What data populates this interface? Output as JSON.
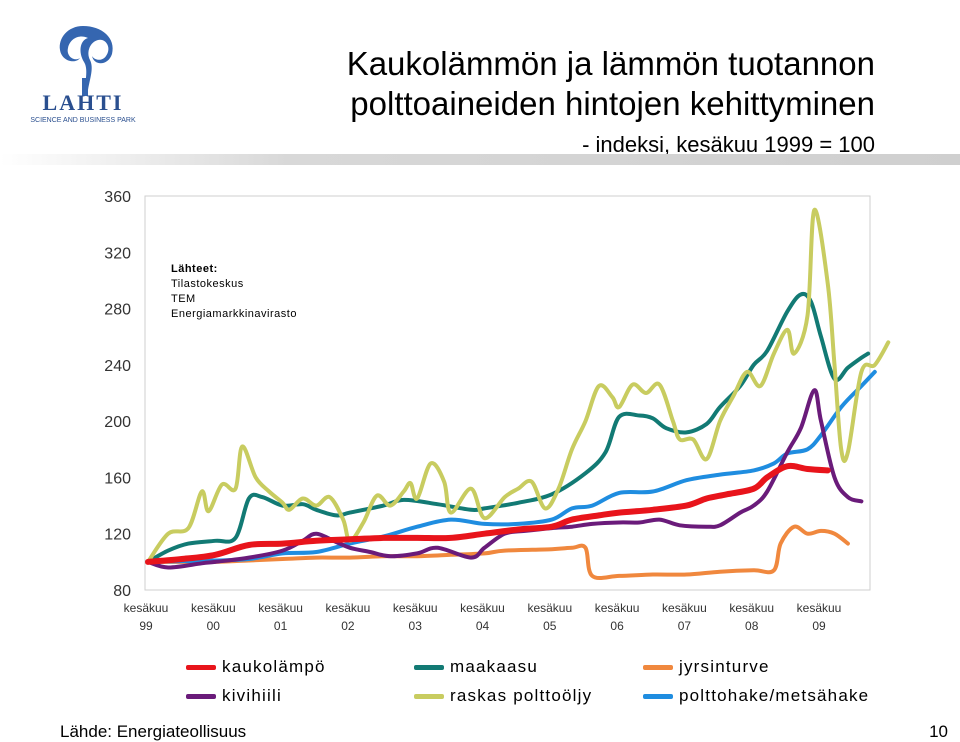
{
  "header": {
    "logo_text": "LAHTI",
    "logo_subtext": "SCIENCE AND BUSINESS PARK",
    "title_line1": "Kaukolämmön ja lämmön tuotannon",
    "title_line2": "polttoaineiden hintojen kehittyminen",
    "subtitle": "- indeksi, kesäkuu 1999 = 100"
  },
  "sources": {
    "heading": "Lähteet:",
    "line1": "Tilastokeskus",
    "line2": "TEM",
    "line3": "Energiamarkkinavirasto"
  },
  "footer": {
    "source": "Lähde: Energiateollisuus",
    "page_number": "10"
  },
  "chart_data": {
    "type": "line",
    "ylim": [
      80,
      360
    ],
    "yticks": [
      80,
      120,
      160,
      200,
      240,
      280,
      320,
      360
    ],
    "xlim": [
      1999.45,
      2009.45
    ],
    "xtick_labels": [
      [
        "kesäkuu",
        "99"
      ],
      [
        "kesäkuu",
        "00"
      ],
      [
        "kesäkuu",
        "01"
      ],
      [
        "kesäkuu",
        "02"
      ],
      [
        "kesäkuu",
        "03"
      ],
      [
        "kesäkuu",
        "04"
      ],
      [
        "kesäkuu",
        "05"
      ],
      [
        "kesäkuu",
        "06"
      ],
      [
        "kesäkuu",
        "07"
      ],
      [
        "kesäkuu",
        "08"
      ],
      [
        "kesäkuu",
        "09"
      ]
    ],
    "grid": false,
    "legend_position": "bottom",
    "series": [
      {
        "name": "kaukolämpö",
        "color": "#e8141b",
        "width": 6,
        "points": [
          [
            0,
            100
          ],
          [
            0.5,
            102
          ],
          [
            1.0,
            105
          ],
          [
            1.5,
            112
          ],
          [
            2.0,
            113
          ],
          [
            2.5,
            115
          ],
          [
            3.0,
            116
          ],
          [
            3.5,
            117
          ],
          [
            4.0,
            117
          ],
          [
            4.5,
            117
          ],
          [
            5.0,
            120
          ],
          [
            5.5,
            123
          ],
          [
            6.0,
            125
          ],
          [
            6.3,
            130
          ],
          [
            6.7,
            133
          ],
          [
            7.0,
            135
          ],
          [
            7.5,
            137
          ],
          [
            8.0,
            140
          ],
          [
            8.3,
            145
          ],
          [
            8.6,
            148
          ],
          [
            9.0,
            152
          ],
          [
            9.2,
            160
          ],
          [
            9.5,
            168
          ],
          [
            9.8,
            166
          ],
          [
            10.1,
            165
          ]
        ]
      },
      {
        "name": "maakaasu",
        "color": "#127a74",
        "width": 4,
        "points": [
          [
            0,
            100
          ],
          [
            0.3,
            108
          ],
          [
            0.6,
            113
          ],
          [
            1.0,
            115
          ],
          [
            1.3,
            117
          ],
          [
            1.5,
            145
          ],
          [
            1.7,
            146
          ],
          [
            2.0,
            140
          ],
          [
            2.3,
            141
          ],
          [
            2.5,
            137
          ],
          [
            2.8,
            133
          ],
          [
            3.0,
            135
          ],
          [
            3.5,
            140
          ],
          [
            3.8,
            144
          ],
          [
            4.3,
            141
          ],
          [
            4.8,
            137
          ],
          [
            5.0,
            138
          ],
          [
            5.5,
            142
          ],
          [
            6.0,
            148
          ],
          [
            6.5,
            163
          ],
          [
            6.8,
            178
          ],
          [
            7.0,
            203
          ],
          [
            7.3,
            204
          ],
          [
            7.5,
            202
          ],
          [
            7.7,
            195
          ],
          [
            8.0,
            192
          ],
          [
            8.3,
            198
          ],
          [
            8.5,
            210
          ],
          [
            8.8,
            225
          ],
          [
            9.0,
            240
          ],
          [
            9.2,
            250
          ],
          [
            9.5,
            278
          ],
          [
            9.7,
            290
          ],
          [
            9.85,
            285
          ],
          [
            10.0,
            260
          ],
          [
            10.2,
            230
          ],
          [
            10.4,
            238
          ],
          [
            10.6,
            245
          ],
          [
            10.7,
            248
          ]
        ]
      },
      {
        "name": "jyrsinturve",
        "color": "#f0883e",
        "width": 4,
        "points": [
          [
            0,
            100
          ],
          [
            0.5,
            100
          ],
          [
            1.0,
            100
          ],
          [
            1.5,
            101
          ],
          [
            2.0,
            102
          ],
          [
            2.5,
            103
          ],
          [
            3.0,
            103
          ],
          [
            3.5,
            104
          ],
          [
            4.0,
            104
          ],
          [
            4.5,
            105
          ],
          [
            5.0,
            106
          ],
          [
            5.3,
            108
          ],
          [
            6.0,
            109
          ],
          [
            6.3,
            110
          ],
          [
            6.5,
            110
          ],
          [
            6.6,
            90
          ],
          [
            7.0,
            90
          ],
          [
            7.5,
            91
          ],
          [
            8.0,
            91
          ],
          [
            8.5,
            93
          ],
          [
            9.0,
            94
          ],
          [
            9.3,
            94
          ],
          [
            9.4,
            113
          ],
          [
            9.6,
            125
          ],
          [
            9.8,
            120
          ],
          [
            10.0,
            122
          ],
          [
            10.2,
            120
          ],
          [
            10.4,
            113
          ]
        ]
      },
      {
        "name": "kivihiili",
        "color": "#6a1b7a",
        "width": 4,
        "points": [
          [
            0,
            100
          ],
          [
            0.3,
            96
          ],
          [
            0.8,
            99
          ],
          [
            1.0,
            100
          ],
          [
            1.5,
            103
          ],
          [
            2.0,
            108
          ],
          [
            2.3,
            115
          ],
          [
            2.5,
            120
          ],
          [
            2.8,
            114
          ],
          [
            3.0,
            110
          ],
          [
            3.3,
            107
          ],
          [
            3.6,
            104
          ],
          [
            4.0,
            106
          ],
          [
            4.3,
            110
          ],
          [
            4.8,
            103
          ],
          [
            5.0,
            110
          ],
          [
            5.3,
            120
          ],
          [
            5.6,
            122
          ],
          [
            6.0,
            124
          ],
          [
            6.3,
            125
          ],
          [
            6.6,
            127
          ],
          [
            7.0,
            128
          ],
          [
            7.3,
            128
          ],
          [
            7.6,
            130
          ],
          [
            7.9,
            126
          ],
          [
            8.3,
            125
          ],
          [
            8.5,
            126
          ],
          [
            8.8,
            135
          ],
          [
            9.0,
            140
          ],
          [
            9.2,
            150
          ],
          [
            9.5,
            178
          ],
          [
            9.7,
            195
          ],
          [
            9.9,
            222
          ],
          [
            10.0,
            200
          ],
          [
            10.2,
            160
          ],
          [
            10.4,
            146
          ],
          [
            10.6,
            143
          ]
        ]
      },
      {
        "name": "raskas polttoöljy",
        "color": "#c8cc60",
        "width": 4,
        "points": [
          [
            0,
            100
          ],
          [
            0.3,
            120
          ],
          [
            0.6,
            124
          ],
          [
            0.8,
            150
          ],
          [
            0.9,
            136
          ],
          [
            1.1,
            155
          ],
          [
            1.3,
            152
          ],
          [
            1.4,
            182
          ],
          [
            1.6,
            160
          ],
          [
            1.8,
            150
          ],
          [
            2.0,
            142
          ],
          [
            2.1,
            137
          ],
          [
            2.3,
            145
          ],
          [
            2.5,
            140
          ],
          [
            2.7,
            146
          ],
          [
            2.9,
            130
          ],
          [
            3.0,
            115
          ],
          [
            3.2,
            128
          ],
          [
            3.4,
            147
          ],
          [
            3.6,
            140
          ],
          [
            3.8,
            150
          ],
          [
            3.9,
            156
          ],
          [
            4.0,
            145
          ],
          [
            4.2,
            170
          ],
          [
            4.4,
            157
          ],
          [
            4.5,
            135
          ],
          [
            4.8,
            152
          ],
          [
            5.0,
            131
          ],
          [
            5.3,
            146
          ],
          [
            5.5,
            152
          ],
          [
            5.7,
            157
          ],
          [
            5.9,
            138
          ],
          [
            6.1,
            152
          ],
          [
            6.3,
            180
          ],
          [
            6.5,
            200
          ],
          [
            6.7,
            225
          ],
          [
            6.9,
            217
          ],
          [
            7.0,
            210
          ],
          [
            7.2,
            226
          ],
          [
            7.4,
            220
          ],
          [
            7.6,
            226
          ],
          [
            7.8,
            200
          ],
          [
            7.9,
            187
          ],
          [
            8.1,
            187
          ],
          [
            8.3,
            173
          ],
          [
            8.5,
            200
          ],
          [
            8.7,
            218
          ],
          [
            8.9,
            235
          ],
          [
            9.1,
            225
          ],
          [
            9.3,
            248
          ],
          [
            9.5,
            265
          ],
          [
            9.6,
            248
          ],
          [
            9.8,
            275
          ],
          [
            9.9,
            350
          ],
          [
            10.1,
            298
          ],
          [
            10.2,
            240
          ],
          [
            10.3,
            180
          ],
          [
            10.4,
            178
          ],
          [
            10.6,
            235
          ],
          [
            10.8,
            240
          ],
          [
            11.0,
            256
          ]
        ]
      },
      {
        "name": "polttohake/metsähake",
        "color": "#1f8de0",
        "width": 4,
        "points": [
          [
            0,
            100
          ],
          [
            1.0,
            101
          ],
          [
            1.5,
            102
          ],
          [
            2.0,
            106
          ],
          [
            2.5,
            107
          ],
          [
            3.0,
            113
          ],
          [
            3.5,
            118
          ],
          [
            4.0,
            125
          ],
          [
            4.5,
            130
          ],
          [
            5.0,
            127
          ],
          [
            5.5,
            127
          ],
          [
            6.0,
            130
          ],
          [
            6.3,
            138
          ],
          [
            6.6,
            140
          ],
          [
            7.0,
            149
          ],
          [
            7.5,
            150
          ],
          [
            8.0,
            158
          ],
          [
            8.5,
            162
          ],
          [
            9.0,
            165
          ],
          [
            9.3,
            170
          ],
          [
            9.5,
            177
          ],
          [
            9.8,
            180
          ],
          [
            10.0,
            190
          ],
          [
            10.3,
            210
          ],
          [
            10.6,
            225
          ],
          [
            10.8,
            235
          ]
        ]
      }
    ]
  }
}
